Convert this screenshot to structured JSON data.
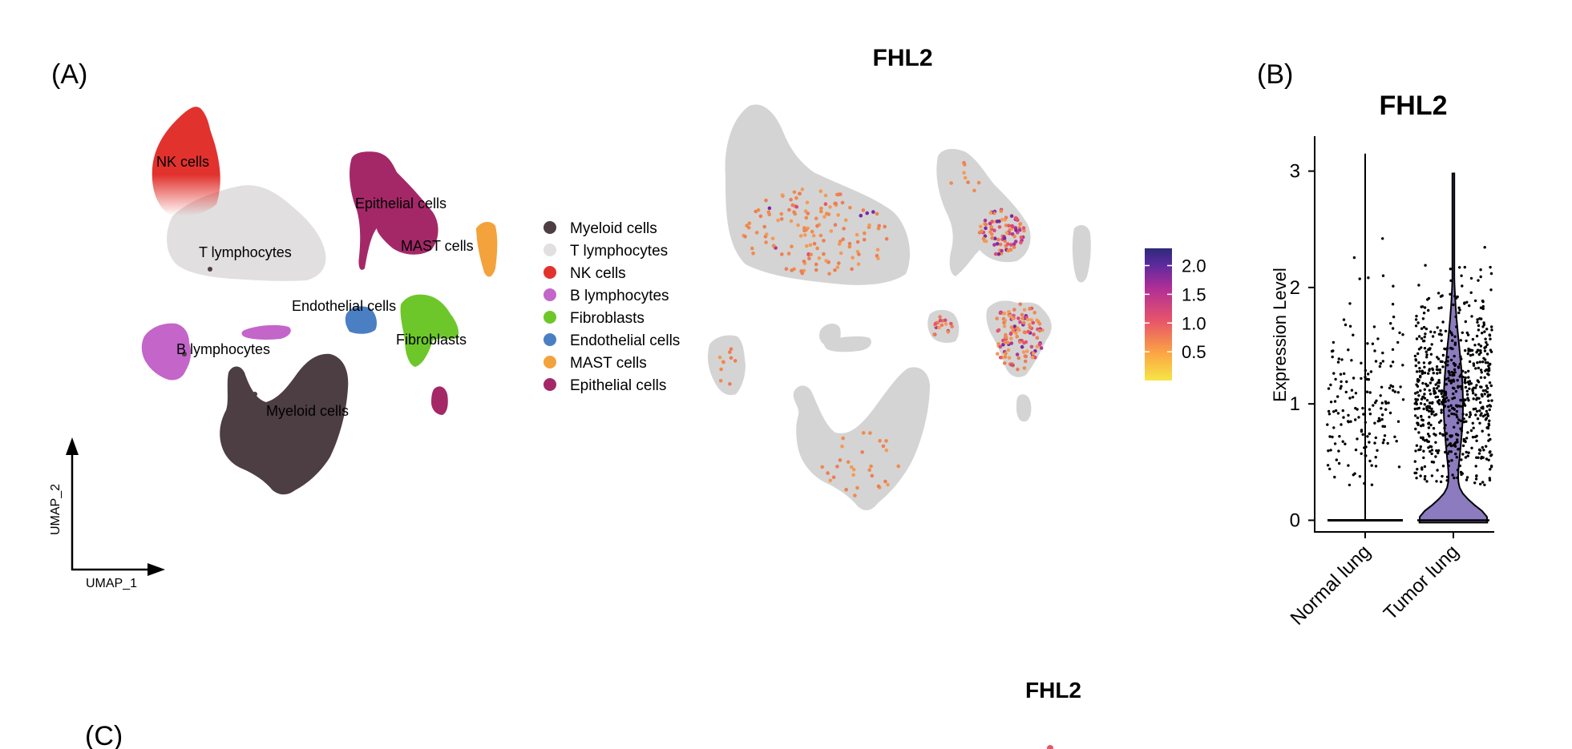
{
  "panels": {
    "a": "(A)",
    "b": "(B)",
    "c": "(C)"
  },
  "chart_data": [
    {
      "type": "scatter",
      "subtype": "umap-clusters",
      "title": "",
      "xlabel": "UMAP_1",
      "ylabel": "UMAP_2",
      "legend_position": "right",
      "clusters": [
        {
          "name": "Myeloid cells",
          "color": "#4d3e43"
        },
        {
          "name": "T lymphocytes",
          "color": "#e2dfe0"
        },
        {
          "name": "NK cells",
          "color": "#e2322e"
        },
        {
          "name": "B lymphocytes",
          "color": "#c365c9"
        },
        {
          "name": "Fibroblasts",
          "color": "#6ec72a"
        },
        {
          "name": "Endothelial cells",
          "color": "#4b7fc4"
        },
        {
          "name": "MAST cells",
          "color": "#f3a23c"
        },
        {
          "name": "Epithelial cells",
          "color": "#a42868"
        }
      ],
      "cluster_labels": [
        "NK cells",
        "Epithelial cells",
        "MAST cells",
        "T lymphocytes",
        "Endothelial cells",
        "Fibroblasts",
        "B lymphocytes",
        "Myeloid cells"
      ]
    },
    {
      "type": "scatter",
      "subtype": "umap-feature",
      "title": "FHL2",
      "background_color": "#d4d4d4",
      "colorbar": {
        "ticks": [
          "2.0",
          "1.5",
          "1.0",
          "0.5"
        ],
        "tick_values": [
          2.0,
          1.5,
          1.0,
          0.5
        ],
        "range": [
          0,
          2.3
        ],
        "colors": [
          "#f5e646",
          "#fca743",
          "#e8556a",
          "#b02e97",
          "#5a2a9c",
          "#2e2a7a"
        ]
      }
    },
    {
      "type": "violin",
      "title": "FHL2",
      "ylabel": "Expression Level",
      "categories": [
        "Normal lung",
        "Tumor lung"
      ],
      "yticks": [
        "0",
        "1",
        "2",
        "3"
      ],
      "ylim": [
        -0.1,
        3.3
      ],
      "series": [
        {
          "category": "Normal lung",
          "max": 3.15,
          "median": 0,
          "fill": "#ffffff"
        },
        {
          "category": "Tumor lung",
          "max": 2.98,
          "median": 0,
          "fill": "#8c7bbf"
        }
      ]
    },
    {
      "type": "scatter",
      "subtype": "umap-feature",
      "title": "FHL2"
    }
  ]
}
